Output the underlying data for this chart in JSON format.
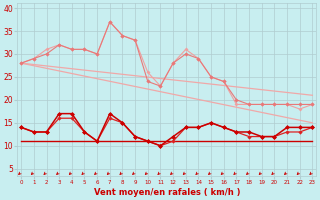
{
  "x24": [
    0,
    1,
    2,
    3,
    4,
    5,
    6,
    7,
    8,
    9,
    10,
    11,
    12,
    13,
    14,
    15,
    16,
    17,
    18,
    19,
    20,
    21,
    22,
    23
  ],
  "series": {
    "rafales1": {
      "x": [
        0,
        1,
        2,
        3,
        4,
        5,
        6,
        7,
        8,
        9,
        10,
        11,
        12,
        13,
        14,
        15,
        16,
        17,
        18,
        19,
        20,
        21,
        22,
        23
      ],
      "y": [
        28,
        29,
        30,
        32,
        31,
        31,
        30,
        37,
        34,
        33,
        24,
        23,
        28,
        30,
        29,
        25,
        24,
        20,
        19,
        19,
        19,
        19,
        19,
        19
      ]
    },
    "rafales2": {
      "x": [
        0,
        1,
        2,
        3,
        4,
        5,
        6,
        7,
        8,
        9,
        10,
        11,
        12,
        13,
        14,
        15,
        16,
        17,
        18,
        19,
        20,
        21,
        22,
        23
      ],
      "y": [
        28,
        29,
        31,
        32,
        31,
        31,
        30,
        37,
        34,
        33,
        26,
        23,
        28,
        31,
        29,
        25,
        24,
        19,
        19,
        19,
        19,
        19,
        18,
        19
      ]
    },
    "trend_high": {
      "x": [
        0,
        23
      ],
      "y": [
        28,
        21
      ]
    },
    "trend_low": {
      "x": [
        0,
        23
      ],
      "y": [
        28,
        15
      ]
    },
    "wind_mean": {
      "x": [
        0,
        1,
        2,
        3,
        4,
        5,
        6,
        7,
        8,
        9,
        10,
        11,
        12,
        13,
        14,
        15,
        16,
        17,
        18,
        19,
        20,
        21,
        22,
        23
      ],
      "y": [
        14,
        13,
        13,
        17,
        17,
        13,
        11,
        17,
        15,
        12,
        11,
        10,
        12,
        14,
        14,
        15,
        14,
        13,
        13,
        12,
        12,
        14,
        14,
        14
      ]
    },
    "wind_low": {
      "x": [
        0,
        1,
        2,
        3,
        4,
        5,
        6,
        7,
        8,
        9,
        10,
        11,
        12,
        13,
        14,
        15,
        16,
        17,
        18,
        19,
        20,
        21,
        22,
        23
      ],
      "y": [
        14,
        13,
        13,
        16,
        16,
        13,
        11,
        16,
        15,
        12,
        11,
        10,
        11,
        14,
        14,
        15,
        14,
        13,
        12,
        12,
        12,
        13,
        13,
        14
      ]
    },
    "flat_line": {
      "x": [
        0,
        23
      ],
      "y": [
        11,
        11
      ]
    }
  },
  "colors": {
    "pink_dark": "#e87878",
    "pink_light": "#f0a0a0",
    "trend": "#f0a8a8",
    "red_dark": "#cc0000",
    "red_medium": "#dd2222"
  },
  "bg_color": "#c8eef0",
  "grid_color": "#b0ccd0",
  "xlabel": "Vent moyen/en rafales ( km/h )",
  "ylabel_ticks": [
    5,
    10,
    15,
    20,
    25,
    30,
    35,
    40
  ],
  "ylim": [
    3.5,
    41
  ],
  "xlim": [
    -0.3,
    23.3
  ],
  "tick_color": "#cc0000",
  "xlabel_color": "#cc0000"
}
